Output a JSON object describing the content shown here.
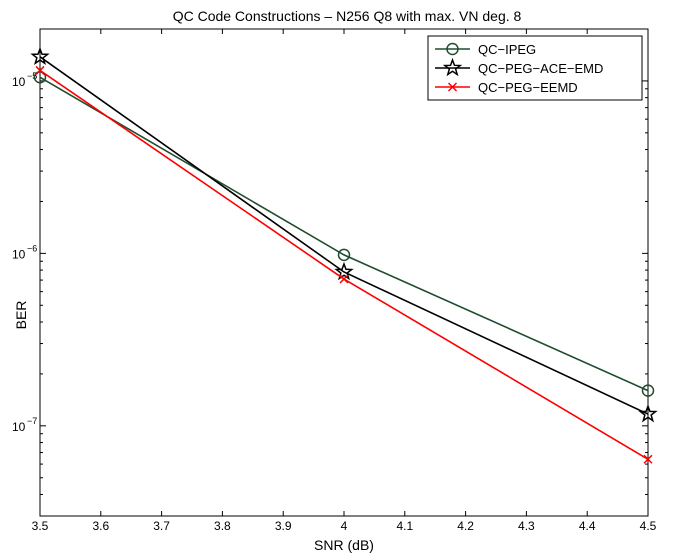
{
  "chart_data": {
    "type": "line",
    "title": "QC Code Constructions – N256 Q8 with max. VN deg. 8",
    "xlabel": "SNR (dB)",
    "ylabel": "BER",
    "xlim": [
      3.5,
      4.5
    ],
    "ylim": [
      3e-08,
      2e-05
    ],
    "yscale": "log",
    "grid": false,
    "legend_position": "top-right",
    "x_ticks": [
      3.5,
      3.6,
      3.7,
      3.8,
      3.9,
      4.0,
      4.1,
      4.2,
      4.3,
      4.4,
      4.5
    ],
    "x_tick_labels": [
      "3.5",
      "3.6",
      "3.7",
      "3.8",
      "3.9",
      "4",
      "4.1",
      "4.2",
      "4.3",
      "4.4",
      "4.5"
    ],
    "y_ticks": [
      {
        "value": 1e-07,
        "base": "10",
        "exp": "−7"
      },
      {
        "value": 1e-06,
        "base": "10",
        "exp": "−6"
      },
      {
        "value": 1e-05,
        "base": "10",
        "exp": "−5"
      }
    ],
    "series": [
      {
        "name": "QC−IPEG",
        "color": "#1f4d2e",
        "marker": "circle",
        "x": [
          3.5,
          4.0,
          4.5
        ],
        "y": [
          1.05e-05,
          9.8e-07,
          1.6e-07
        ]
      },
      {
        "name": "QC−PEG−ACE−EMD",
        "color": "#000000",
        "marker": "star",
        "x": [
          3.5,
          4.0,
          4.5
        ],
        "y": [
          1.38e-05,
          7.8e-07,
          1.17e-07
        ]
      },
      {
        "name": "QC−PEG−EEMD",
        "color": "#ff0000",
        "marker": "x",
        "x": [
          3.5,
          4.0,
          4.5
        ],
        "y": [
          1.15e-05,
          7.1e-07,
          6.4e-08
        ]
      }
    ]
  }
}
